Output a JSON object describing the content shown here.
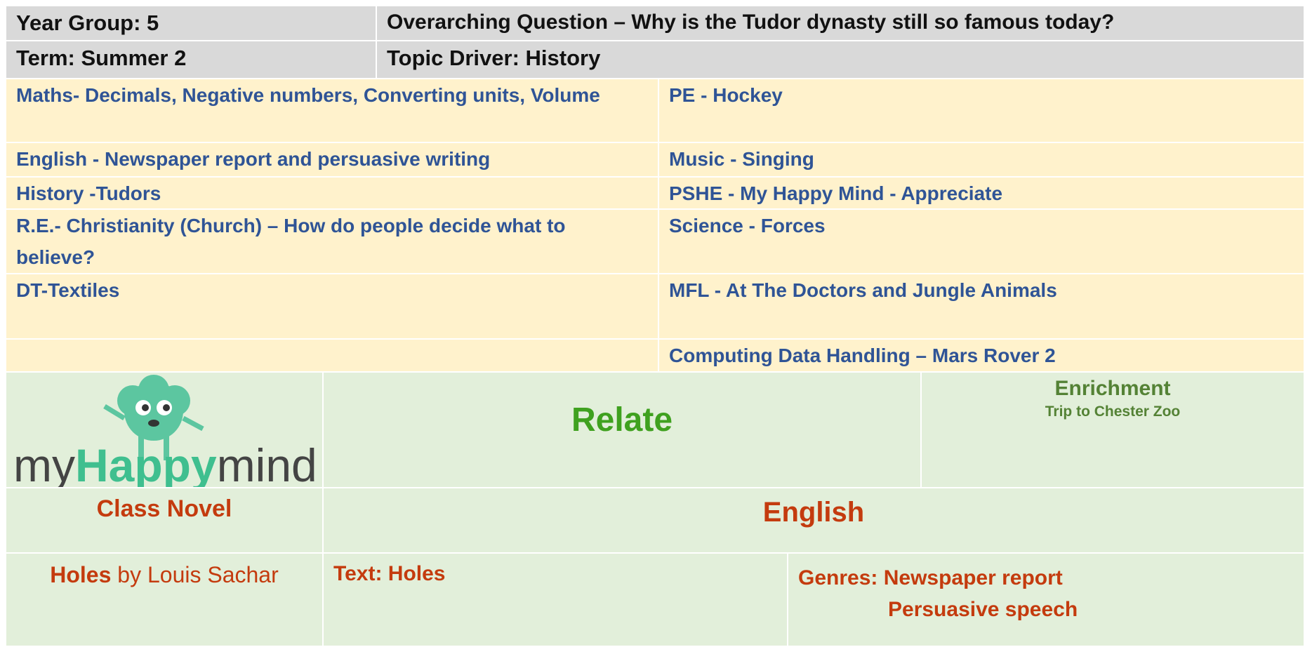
{
  "header": {
    "year_group": "Year Group: 5",
    "question": "Overarching Question – Why is the Tudor dynasty still so famous today?",
    "term": "Term: Summer 2",
    "topic_driver": "Topic Driver: History"
  },
  "subjects": {
    "left": [
      "Maths- Decimals, Negative numbers, Converting units, Volume",
      "English - Newspaper report and persuasive writing",
      "History -Tudors",
      "R.E.- Christianity (Church) – How do people decide what to believe?",
      "DT-Textiles"
    ],
    "right": [
      "PE - Hockey",
      "Music - Singing",
      "PSHE - My Happy Mind - Appreciate",
      "Science - Forces",
      "MFL - At The Doctors and Jungle Animals",
      "Computing Data Handling – Mars Rover 2"
    ]
  },
  "logo": {
    "my": "my",
    "happy": "Happy",
    "mind": "mind"
  },
  "theme": "Relate",
  "enrichment": {
    "title": "Enrichment",
    "detail": "Trip to Chester Zoo"
  },
  "class_novel": {
    "heading": "Class Novel",
    "title": "Holes",
    "byline": "by Louis Sachar"
  },
  "english": {
    "heading": "English",
    "text": "Text: Holes",
    "genres": [
      "Genres: Newspaper report",
      "Persuasive speech"
    ]
  }
}
